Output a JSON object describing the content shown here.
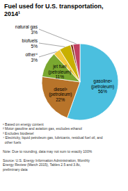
{
  "chart_data": {
    "type": "pie",
    "title": "Fuel used for U.S. transportation,\n2014¹",
    "categories": [
      "gasoline²\n(petroleum)",
      "diesel³\n(petroleum)",
      "jet fuel\n(petroleum)",
      "other⁴",
      "biofuels",
      null,
      "natural gas"
    ],
    "values": [
      56,
      22,
      11,
      3,
      5,
      1,
      3
    ],
    "value_labels": [
      "56%",
      "22%",
      "11%",
      "3%",
      "5%",
      null,
      "3%"
    ],
    "colors": [
      "#4bbfdf",
      "#b8742a",
      "#7aa830",
      "#f2c93e",
      "#c8b000",
      "#7b2c10",
      "#c04060"
    ],
    "data_labels": true,
    "annotations": [
      "¹ Based on energy content\n² Motor gasoline and aviation gas, excludes ethanol\n³ Excludes biodiesel\n⁴ Electricity, liquid petroleum gas, lubricants, residual fuel oil, and\n  other fuels\n\nNote: Due to rounding, data may not sum to exactly 100%\n\nSource: U.S. Energy Information Administration, Monthly\nEnergy Review (March 2015), Tables 2.5 and 3.8c,\npreliminary data"
    ]
  }
}
